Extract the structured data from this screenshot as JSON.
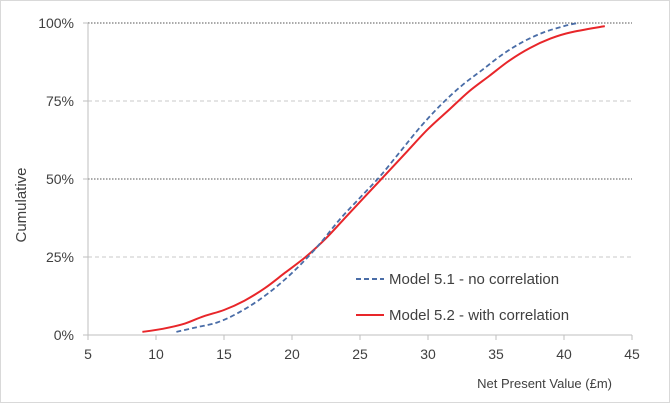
{
  "chart_data": {
    "type": "line",
    "title": "",
    "xlabel": "Net Present Value (£m)",
    "ylabel": "Cumulative",
    "xlim": [
      5,
      45
    ],
    "ylim": [
      0,
      1
    ],
    "x_ticks": [
      5,
      10,
      15,
      20,
      25,
      30,
      35,
      40,
      45
    ],
    "x_tick_labels": [
      "5",
      "10",
      "15",
      "20",
      "25",
      "30",
      "35",
      "40",
      "45"
    ],
    "y_ticks": [
      0,
      0.25,
      0.5,
      0.75,
      1
    ],
    "y_tick_labels": [
      "0%",
      "25%",
      "50%",
      "75%",
      "100%"
    ],
    "grid": {
      "horizontal": true,
      "major_dotted_at": [
        0.5,
        1.0
      ],
      "minor_dashed_at": [
        0.25,
        0.75
      ]
    },
    "legend_position": "bottom-right",
    "series": [
      {
        "name": "Model 5.1 - no correlation",
        "color": "#4a6da7",
        "style": "dashed",
        "points": [
          [
            11.5,
            0.01
          ],
          [
            13,
            0.025
          ],
          [
            14.5,
            0.04
          ],
          [
            16,
            0.07
          ],
          [
            17.5,
            0.11
          ],
          [
            19,
            0.16
          ],
          [
            20.5,
            0.22
          ],
          [
            22,
            0.29
          ],
          [
            23.5,
            0.37
          ],
          [
            25,
            0.44
          ],
          [
            26.5,
            0.51
          ],
          [
            28,
            0.59
          ],
          [
            29.5,
            0.67
          ],
          [
            31,
            0.74
          ],
          [
            32.5,
            0.8
          ],
          [
            34,
            0.85
          ],
          [
            35.5,
            0.9
          ],
          [
            37,
            0.94
          ],
          [
            38.5,
            0.97
          ],
          [
            40,
            0.99
          ],
          [
            41,
            1.0
          ]
        ]
      },
      {
        "name": "Model 5.2 - with correlation",
        "color": "#e8262a",
        "style": "solid",
        "points": [
          [
            9,
            0.01
          ],
          [
            10.5,
            0.02
          ],
          [
            12,
            0.035
          ],
          [
            13.5,
            0.06
          ],
          [
            15,
            0.08
          ],
          [
            16.5,
            0.11
          ],
          [
            18,
            0.15
          ],
          [
            19.5,
            0.2
          ],
          [
            21,
            0.25
          ],
          [
            22.5,
            0.31
          ],
          [
            24,
            0.38
          ],
          [
            25.5,
            0.45
          ],
          [
            27,
            0.52
          ],
          [
            28.5,
            0.59
          ],
          [
            30,
            0.66
          ],
          [
            31.5,
            0.72
          ],
          [
            33,
            0.78
          ],
          [
            34.5,
            0.83
          ],
          [
            36,
            0.88
          ],
          [
            37.5,
            0.92
          ],
          [
            39,
            0.95
          ],
          [
            40.5,
            0.97
          ],
          [
            43,
            0.99
          ]
        ]
      }
    ]
  }
}
